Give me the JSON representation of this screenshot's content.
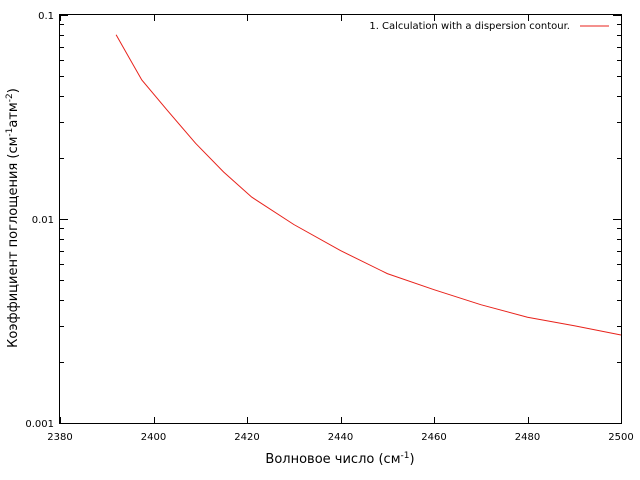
{
  "chart_data": {
    "type": "line",
    "title": "",
    "xlabel": "Волновое число (см",
    "xlabel_sup": "-1",
    "xlabel_suffix": ")",
    "ylabel": "Коэффициент поглощения (см",
    "ylabel_sup1": "-1",
    "ylabel_mid": "атм",
    "ylabel_sup2": "-2",
    "ylabel_suffix": ")",
    "xlim": [
      2380,
      2500
    ],
    "ylim": [
      0.001,
      0.1
    ],
    "yscale": "log",
    "grid": false,
    "legend_position": "top-right",
    "x_ticks": [
      2380,
      2400,
      2420,
      2440,
      2460,
      2480,
      2500
    ],
    "x_tick_labels": [
      "2380",
      "2400",
      "2420",
      "2440",
      "2460",
      "2480",
      "2500"
    ],
    "y_major_ticks": [
      0.001,
      0.01,
      0.1
    ],
    "y_tick_labels": [
      "0.001",
      "0.01",
      "0.1"
    ],
    "series": [
      {
        "name": "1. Calculation with a dispersion contour.",
        "color": "#e8221b",
        "x": [
          2392,
          2397.5,
          2403,
          2409,
          2415,
          2421,
          2430,
          2440,
          2450,
          2460,
          2470,
          2480,
          2490,
          2500
        ],
        "y": [
          0.08,
          0.048,
          0.034,
          0.0235,
          0.017,
          0.0128,
          0.0094,
          0.007,
          0.0054,
          0.0045,
          0.0038,
          0.0033,
          0.003,
          0.0027
        ]
      }
    ]
  }
}
